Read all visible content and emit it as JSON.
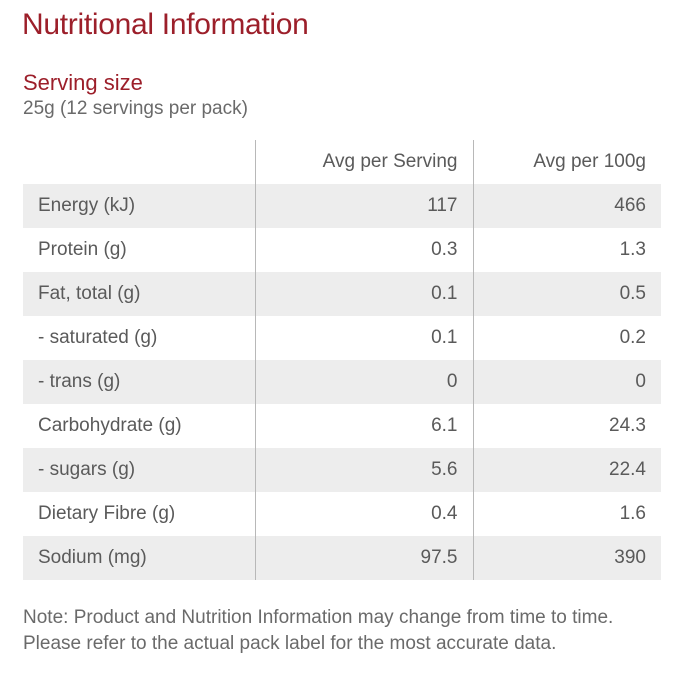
{
  "title": "Nutritional Information",
  "serving": {
    "heading": "Serving size",
    "value": "25g (12 servings per pack)"
  },
  "table": {
    "headers": [
      "",
      "Avg per Serving",
      "Avg per 100g"
    ],
    "rows": [
      {
        "name": "Energy (kJ)",
        "per_serving": "117",
        "per_100g": "466"
      },
      {
        "name": "Protein (g)",
        "per_serving": "0.3",
        "per_100g": "1.3"
      },
      {
        "name": "Fat, total (g)",
        "per_serving": "0.1",
        "per_100g": "0.5"
      },
      {
        "name": "- saturated (g)",
        "per_serving": "0.1",
        "per_100g": "0.2"
      },
      {
        "name": "- trans (g)",
        "per_serving": "0",
        "per_100g": "0"
      },
      {
        "name": "Carbohydrate (g)",
        "per_serving": "6.1",
        "per_100g": "24.3"
      },
      {
        "name": "- sugars (g)",
        "per_serving": "5.6",
        "per_100g": "22.4"
      },
      {
        "name": "Dietary Fibre (g)",
        "per_serving": "0.4",
        "per_100g": "1.6"
      },
      {
        "name": "Sodium (mg)",
        "per_serving": "97.5",
        "per_100g": "390"
      }
    ]
  },
  "note": "Note: Product and Nutrition Information may change from time to time. Please refer to the actual pack label for the most accurate data.",
  "colors": {
    "heading": "#9c1f2a",
    "row_shade": "#ededed",
    "text": "#5a5a5a"
  }
}
